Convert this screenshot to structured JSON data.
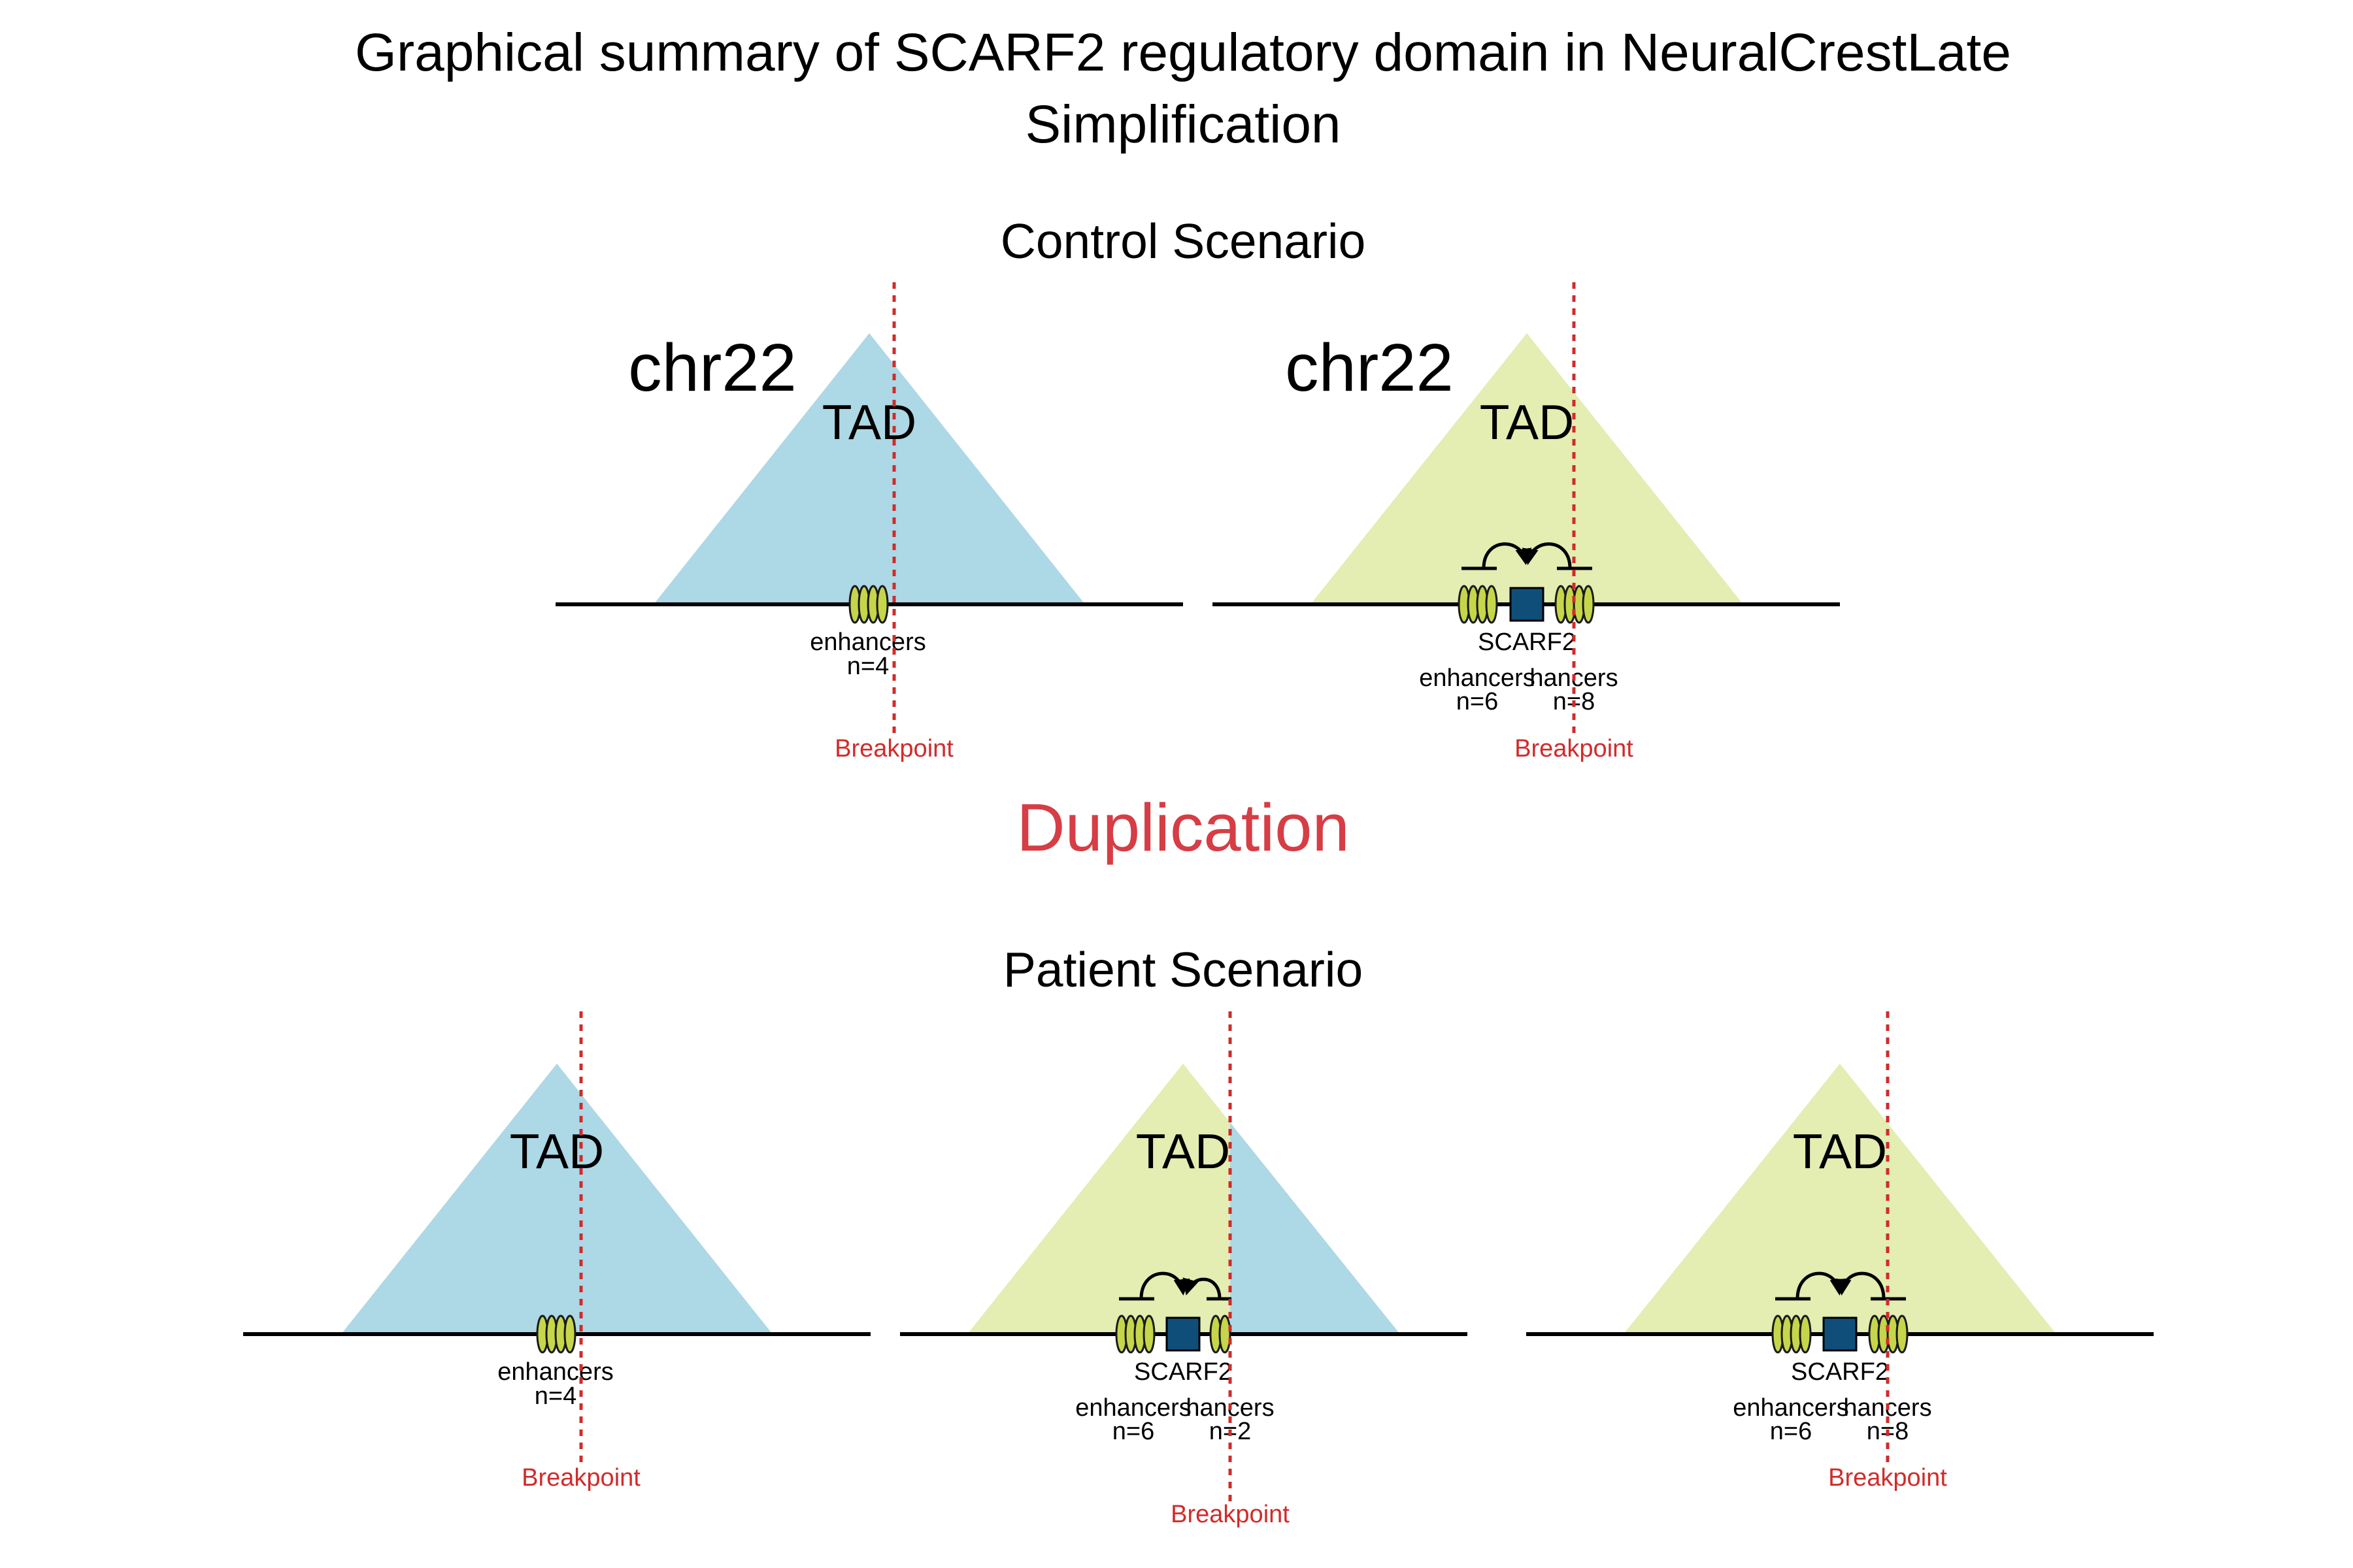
{
  "title_line1": "Graphical summary of SCARF2 regulatory domain in NeuralCrestLate",
  "title_line2": "Simplification",
  "colors": {
    "tad_blue": "#add8e6",
    "tad_green": "#e4edb2",
    "enhancer_fill": "#c5d64a",
    "gene_fill": "#104e7a",
    "breakpoint": "#d12b2b",
    "event": "#d63d45"
  },
  "control": {
    "heading": "Control Scenario",
    "panels": [
      {
        "chrom_label": "chr22",
        "tad_label": "TAD",
        "enhancers_label": "enhancers",
        "enhancers_count": "n=4",
        "breakpoint_label": "Breakpoint"
      },
      {
        "chrom_label": "chr22",
        "tad_label": "TAD",
        "gene_label": "SCARF2",
        "left_enhancers_label": "enhancers",
        "left_enhancers_count": "n=6",
        "right_enhancers_label": "hancers",
        "right_enhancers_count": "n=8",
        "breakpoint_label": "Breakpoint"
      }
    ]
  },
  "event_label": "Duplication",
  "patient": {
    "heading": "Patient Scenario",
    "panels": [
      {
        "tad_label": "TAD",
        "enhancers_label": "enhancers",
        "enhancers_count": "n=4",
        "breakpoint_label": "Breakpoint"
      },
      {
        "tad_label": "TAD",
        "gene_label": "SCARF2",
        "left_enhancers_label": "enhancers",
        "left_enhancers_count": "n=6",
        "right_enhancers_label": "hancers",
        "right_enhancers_count": "n=2",
        "breakpoint_label": "Breakpoint"
      },
      {
        "tad_label": "TAD",
        "gene_label": "SCARF2",
        "left_enhancers_label": "enhancers",
        "left_enhancers_count": "n=6",
        "right_enhancers_label": "hancers",
        "right_enhancers_count": "n=8",
        "breakpoint_label": "Breakpoint"
      }
    ]
  }
}
